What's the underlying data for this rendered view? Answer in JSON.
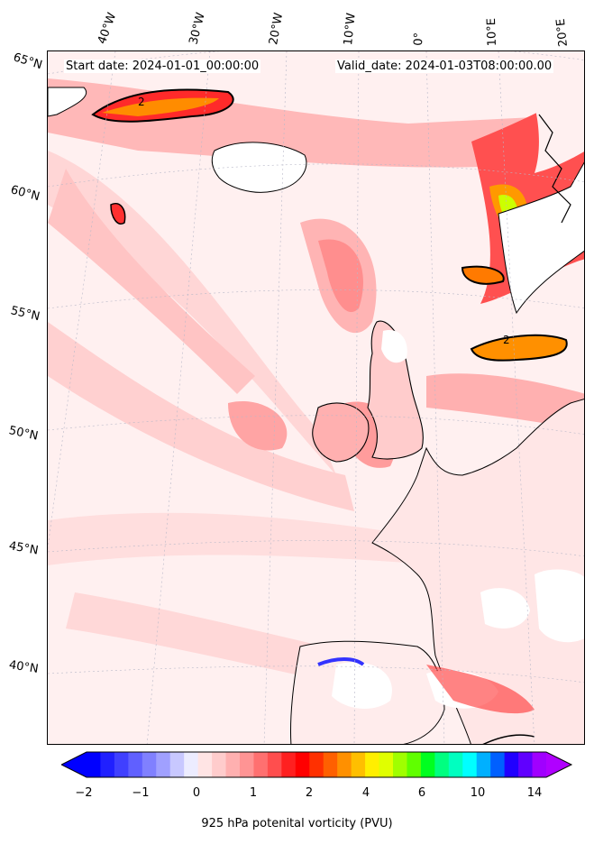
{
  "header": {
    "start_date": "Start date: 2024-01-01_00:00:00",
    "valid_date": "Valid_date: 2024-01-03T08:00:00.00"
  },
  "map": {
    "projection": "Lambert conformal (North Atlantic / Europe)",
    "variable": "925 hPa potential vorticity",
    "contour_label": "2",
    "lat_labels": [
      "65°N",
      "60°N",
      "55°N",
      "50°N",
      "45°N",
      "40°N"
    ],
    "lon_labels": [
      "40°W",
      "30°W",
      "20°W",
      "10°W",
      "0°",
      "10°E",
      "20°E"
    ]
  },
  "colorbar": {
    "label": "925 hPa potenital vorticity (PVU)",
    "tick_labels": [
      "−2",
      "−1",
      "0",
      "1",
      "2",
      "4",
      "6",
      "10",
      "14"
    ],
    "colors": [
      "#0000ff",
      "#2020ff",
      "#4040ff",
      "#6060ff",
      "#8080ff",
      "#a0a0ff",
      "#c8c8ff",
      "#ececff",
      "#ffe4e4",
      "#ffcccc",
      "#ffb0b0",
      "#ff9494",
      "#ff7070",
      "#ff4e4e",
      "#ff2020",
      "#ff0000",
      "#ff3000",
      "#ff6000",
      "#ff9000",
      "#ffbf00",
      "#ffef00",
      "#e0ff00",
      "#a0ff00",
      "#60ff00",
      "#00ff20",
      "#00ff80",
      "#00ffc0",
      "#00ffff",
      "#00b0ff",
      "#0060ff",
      "#2000ff",
      "#6000ff",
      "#a000ff"
    ],
    "under_color": "#0000ff",
    "over_color": "#b000ff"
  }
}
